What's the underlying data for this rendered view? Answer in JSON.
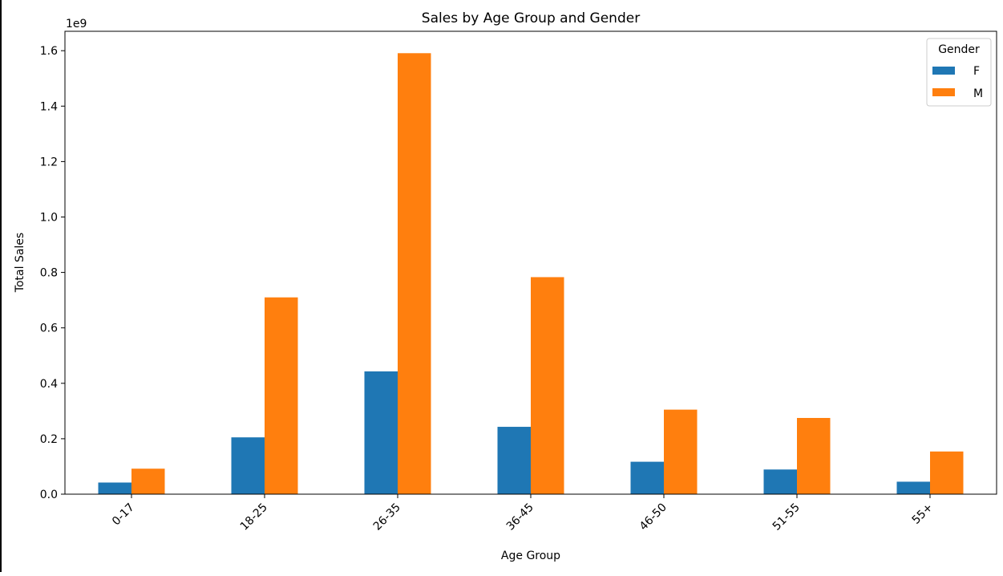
{
  "chart_data": {
    "type": "bar",
    "title": "Sales by Age Group and Gender",
    "xlabel": "Age Group",
    "ylabel": "Total Sales",
    "y_multiplier_label": "1e9",
    "categories": [
      "0-17",
      "18-25",
      "26-35",
      "36-45",
      "46-50",
      "51-55",
      "55+"
    ],
    "series": [
      {
        "name": "F",
        "color": "#1f77b4",
        "values": [
          42000000,
          205000000,
          443000000,
          243000000,
          117000000,
          89000000,
          45000000
        ]
      },
      {
        "name": "M",
        "color": "#ff7f0e",
        "values": [
          92000000,
          710000000,
          1591000000,
          783000000,
          305000000,
          275000000,
          154000000
        ]
      }
    ],
    "ylim": [
      0,
      1670000000
    ],
    "yticks": [
      {
        "value": 0,
        "label": "0.0"
      },
      {
        "value": 200000000,
        "label": "0.2"
      },
      {
        "value": 400000000,
        "label": "0.4"
      },
      {
        "value": 600000000,
        "label": "0.6"
      },
      {
        "value": 800000000,
        "label": "0.8"
      },
      {
        "value": 1000000000,
        "label": "1.0"
      },
      {
        "value": 1200000000,
        "label": "1.2"
      },
      {
        "value": 1400000000,
        "label": "1.4"
      },
      {
        "value": 1600000000,
        "label": "1.6"
      }
    ],
    "legend": {
      "title": "Gender",
      "position": "top-right"
    },
    "grid": false,
    "x_tick_rotation_deg": 45
  }
}
